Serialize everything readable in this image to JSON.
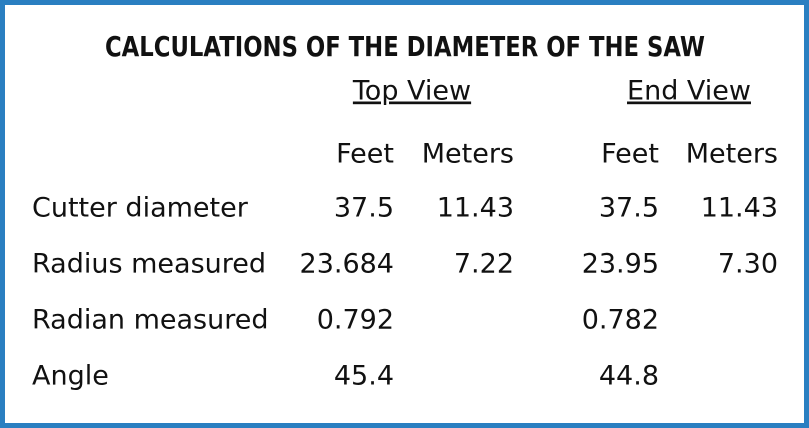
{
  "title": "CALCULATIONS OF THE DIAMETER OF THE SAW",
  "groups": [
    "Top View",
    "End View"
  ],
  "columns": [
    "Feet",
    "Meters",
    "Feet",
    "Meters"
  ],
  "rows": [
    {
      "label": "Cutter diameter",
      "top": [
        "37.5",
        "11.43"
      ],
      "end": [
        "37.5",
        "11.43"
      ]
    },
    {
      "label": "Radius measured",
      "top": [
        "23.684",
        "7.22"
      ],
      "end": [
        "23.95",
        "7.30"
      ]
    },
    {
      "label": "Radian measured",
      "top": [
        "0.792"
      ],
      "end": [
        "0.782"
      ]
    },
    {
      "label": "Angle",
      "top": [
        "45.4"
      ],
      "end": [
        "44.8"
      ]
    }
  ]
}
